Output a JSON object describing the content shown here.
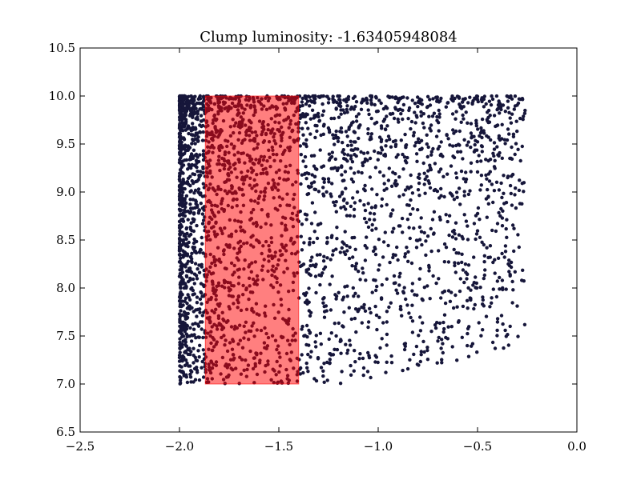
{
  "chart_data": {
    "type": "scatter",
    "title": "Clump luminosity: -1.63405948084",
    "xlabel": "",
    "ylabel": "",
    "xlim": [
      -2.5,
      0.0
    ],
    "ylim": [
      6.5,
      10.5
    ],
    "xticks": [
      -2.5,
      -2.0,
      -1.5,
      -1.0,
      -0.5,
      0.0
    ],
    "yticks": [
      6.5,
      7.0,
      7.5,
      8.0,
      8.5,
      9.0,
      9.5,
      10.0,
      10.5
    ],
    "xtick_labels": [
      "−2.5",
      "−2.0",
      "−1.5",
      "−1.0",
      "−0.5",
      "0.0"
    ],
    "ytick_labels": [
      "6.5",
      "7.0",
      "7.5",
      "8.0",
      "8.5",
      "9.0",
      "9.5",
      "10.0",
      "10.5"
    ],
    "grid": false,
    "point_color": "#16163a",
    "points_summary": {
      "x_range": [
        -2.0,
        -0.26
      ],
      "y_range": [
        7.0,
        10.0
      ],
      "density": "dense band between x=-2.0 and x=-1.2, sparse toward x=-0.3, concentrated near y=10.0"
    },
    "highlight_region": {
      "x_range": [
        -1.87,
        -1.4
      ],
      "y_range": [
        7.0,
        10.0
      ],
      "fill_color": "#ff0000",
      "fill_opacity": 0.5
    }
  }
}
